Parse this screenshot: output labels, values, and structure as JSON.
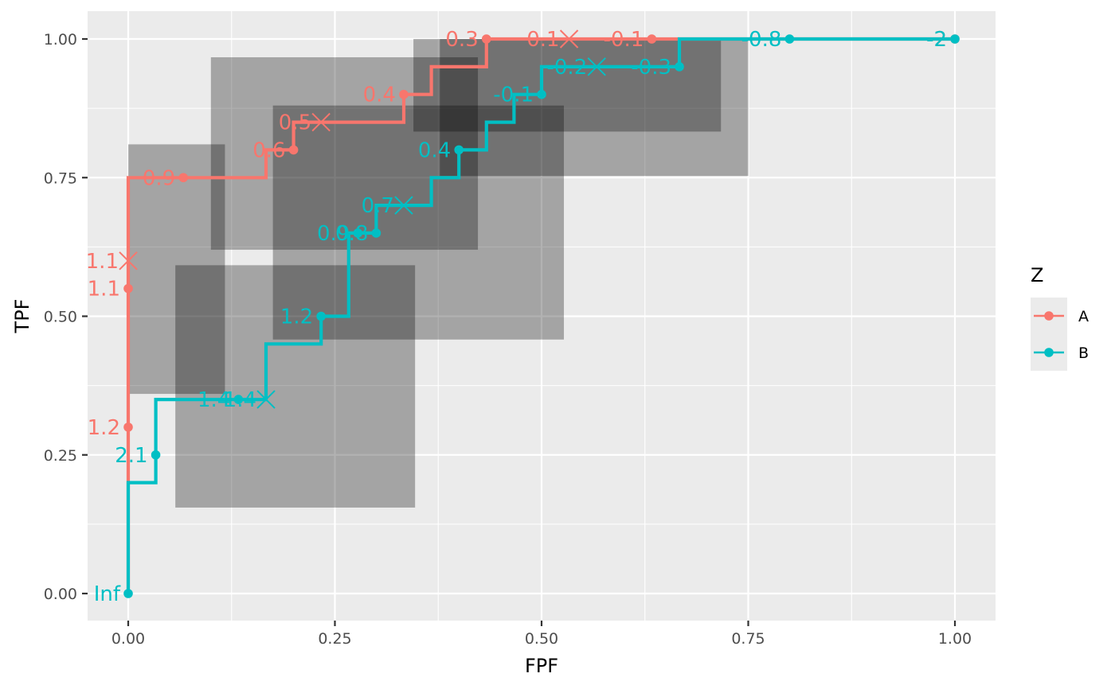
{
  "chart_data": {
    "type": "line",
    "subtype": "roc-step",
    "xlabel": "FPF",
    "ylabel": "TPF",
    "xlim": [
      -0.05,
      1.05
    ],
    "ylim": [
      -0.05,
      1.05
    ],
    "x_ticks": [
      0,
      0.25,
      0.5,
      0.75,
      1
    ],
    "x_tick_labels": [
      "0.00",
      "0.25",
      "0.50",
      "0.75",
      "1.00"
    ],
    "y_ticks": [
      0,
      0.25,
      0.5,
      0.75,
      1
    ],
    "y_tick_labels": [
      "0.00",
      "0.25",
      "0.50",
      "0.75",
      "1.00"
    ],
    "grid": true,
    "legend": {
      "title": "Z",
      "position": "right"
    },
    "series": [
      {
        "name": "A",
        "color": "#F8766D",
        "curve": [
          [
            0,
            0
          ],
          [
            0,
            0.75
          ],
          [
            0.1667,
            0.75
          ],
          [
            0.1667,
            0.8
          ],
          [
            0.2,
            0.8
          ],
          [
            0.2,
            0.85
          ],
          [
            0.3333,
            0.85
          ],
          [
            0.3333,
            0.9
          ],
          [
            0.3667,
            0.9
          ],
          [
            0.3667,
            0.95
          ],
          [
            0.4333,
            0.95
          ],
          [
            0.4333,
            1
          ],
          [
            1,
            1
          ]
        ],
        "points": [
          {
            "x": 0,
            "y": 0.3,
            "label": "1.2"
          },
          {
            "x": 0,
            "y": 0.55,
            "label": "1.1"
          },
          {
            "x": 0.0667,
            "y": 0.75,
            "label": "0.9"
          },
          {
            "x": 0.2,
            "y": 0.8,
            "label": "0.6"
          },
          {
            "x": 0.3333,
            "y": 0.9,
            "label": "0.4"
          },
          {
            "x": 0.4333,
            "y": 1,
            "label": "0.3"
          },
          {
            "x": 0.6333,
            "y": 1,
            "label": "-0.1"
          },
          {
            "x": 1,
            "y": 1,
            "label": "-2"
          }
        ],
        "crosses": [
          {
            "x": 0,
            "y": 0.6,
            "label": "1.1"
          },
          {
            "x": 0.2333,
            "y": 0.85,
            "label": "0.5"
          },
          {
            "x": 0.5333,
            "y": 1,
            "label": "0.1"
          }
        ]
      },
      {
        "name": "B",
        "color": "#00BFC4",
        "curve": [
          [
            0,
            0
          ],
          [
            0,
            0.2
          ],
          [
            0.0333,
            0.2
          ],
          [
            0.0333,
            0.35
          ],
          [
            0.1667,
            0.35
          ],
          [
            0.1667,
            0.45
          ],
          [
            0.2333,
            0.45
          ],
          [
            0.2333,
            0.5
          ],
          [
            0.2667,
            0.5
          ],
          [
            0.2667,
            0.65
          ],
          [
            0.3,
            0.65
          ],
          [
            0.3,
            0.7
          ],
          [
            0.3667,
            0.7
          ],
          [
            0.3667,
            0.75
          ],
          [
            0.4,
            0.75
          ],
          [
            0.4,
            0.8
          ],
          [
            0.4333,
            0.8
          ],
          [
            0.4333,
            0.85
          ],
          [
            0.4667,
            0.85
          ],
          [
            0.4667,
            0.9
          ],
          [
            0.5,
            0.9
          ],
          [
            0.5,
            0.95
          ],
          [
            0.6667,
            0.95
          ],
          [
            0.6667,
            1
          ],
          [
            1,
            1
          ]
        ],
        "points": [
          {
            "x": 0,
            "y": 0,
            "label": "Inf"
          },
          {
            "x": 0.0333,
            "y": 0.25,
            "label": "2.1"
          },
          {
            "x": 0.1333,
            "y": 0.35,
            "label": "1.4"
          },
          {
            "x": 0.2333,
            "y": 0.5,
            "label": "1.2"
          },
          {
            "x": 0.2778,
            "y": 0.65,
            "label": "0.9"
          },
          {
            "x": 0.3,
            "y": 0.65,
            "label": "0.8"
          },
          {
            "x": 0.4,
            "y": 0.8,
            "label": "0.4"
          },
          {
            "x": 0.5,
            "y": 0.9,
            "label": "-0.1"
          },
          {
            "x": 0.6667,
            "y": 0.95,
            "label": "-0.3"
          },
          {
            "x": 0.8,
            "y": 1,
            "label": "-0.8"
          },
          {
            "x": 1,
            "y": 1,
            "label": "-2"
          }
        ],
        "crosses": [
          {
            "x": 0.1667,
            "y": 0.35,
            "label": "1.4"
          },
          {
            "x": 0.3333,
            "y": 0.7,
            "label": "0.7"
          },
          {
            "x": 0.5667,
            "y": 0.95,
            "label": "-0.2"
          }
        ]
      }
    ],
    "confidence_regions": [
      {
        "x0": 0.0,
        "x1": 0.117,
        "y0": 0.36,
        "y1": 0.81
      },
      {
        "x0": 0.057,
        "x1": 0.347,
        "y0": 0.155,
        "y1": 0.592
      },
      {
        "x0": 0.1,
        "x1": 0.423,
        "y0": 0.62,
        "y1": 0.967
      },
      {
        "x0": 0.175,
        "x1": 0.527,
        "y0": 0.458,
        "y1": 0.88
      },
      {
        "x0": 0.345,
        "x1": 0.717,
        "y0": 0.833,
        "y1": 1.0
      },
      {
        "x0": 0.377,
        "x1": 0.75,
        "y0": 0.753,
        "y1": 1.0
      }
    ],
    "confidence_region_color": "#000000",
    "confidence_region_opacity": 0.3
  }
}
